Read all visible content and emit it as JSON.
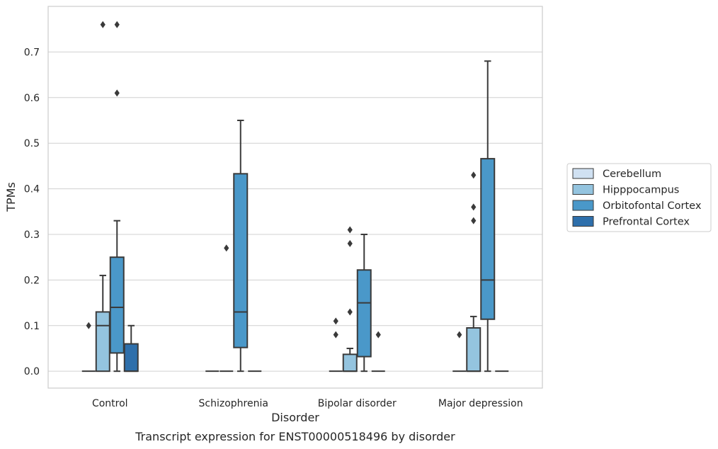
{
  "chart_data": {
    "type": "box",
    "caption": "Transcript expression for ENST00000518496 by disorder",
    "xlabel": "Disorder",
    "ylabel": "TPMs",
    "ylim": [
      -0.037,
      0.8
    ],
    "yticks": [
      0.0,
      0.1,
      0.2,
      0.3,
      0.4,
      0.5,
      0.6,
      0.7
    ],
    "ytick_labels": [
      "0.0",
      "0.1",
      "0.2",
      "0.3",
      "0.4",
      "0.5",
      "0.6",
      "0.7"
    ],
    "grid": "horizontal",
    "legend_position": "right",
    "categories": [
      "Control",
      "Schizophrenia",
      "Bipolar disorder",
      "Major depression"
    ],
    "series": [
      {
        "name": "Cerebellum",
        "color": "#d0e1f2",
        "boxes": [
          {
            "q1": 0.0,
            "median": 0.0,
            "q3": 0.0,
            "whisker_low": 0.0,
            "whisker_high": 0.0,
            "outliers": [
              0.1
            ]
          },
          {
            "q1": 0.0,
            "median": 0.0,
            "q3": 0.0,
            "whisker_low": 0.0,
            "whisker_high": 0.0,
            "outliers": []
          },
          {
            "q1": 0.0,
            "median": 0.0,
            "q3": 0.0,
            "whisker_low": 0.0,
            "whisker_high": 0.0,
            "outliers": [
              0.08,
              0.11
            ]
          },
          {
            "q1": 0.0,
            "median": 0.0,
            "q3": 0.0,
            "whisker_low": 0.0,
            "whisker_high": 0.0,
            "outliers": [
              0.08
            ]
          }
        ]
      },
      {
        "name": "Hipppocampus",
        "color": "#94c4df",
        "boxes": [
          {
            "q1": 0.0,
            "median": 0.1,
            "q3": 0.13,
            "whisker_low": 0.0,
            "whisker_high": 0.21,
            "outliers": [
              0.76
            ]
          },
          {
            "q1": 0.0,
            "median": 0.0,
            "q3": 0.0,
            "whisker_low": 0.0,
            "whisker_high": 0.0,
            "outliers": [
              0.27
            ]
          },
          {
            "q1": 0.0,
            "median": 0.0,
            "q3": 0.037,
            "whisker_low": 0.0,
            "whisker_high": 0.05,
            "outliers": [
              0.13,
              0.28,
              0.31
            ]
          },
          {
            "q1": 0.0,
            "median": 0.0,
            "q3": 0.095,
            "whisker_low": 0.0,
            "whisker_high": 0.12,
            "outliers": [
              0.33,
              0.36,
              0.43
            ]
          }
        ]
      },
      {
        "name": "Orbitofontal Cortex",
        "color": "#4a98c9",
        "boxes": [
          {
            "q1": 0.04,
            "median": 0.14,
            "q3": 0.25,
            "whisker_low": 0.0,
            "whisker_high": 0.33,
            "outliers": [
              0.61,
              0.76
            ]
          },
          {
            "q1": 0.052,
            "median": 0.13,
            "q3": 0.433,
            "whisker_low": 0.0,
            "whisker_high": 0.55,
            "outliers": []
          },
          {
            "q1": 0.032,
            "median": 0.15,
            "q3": 0.222,
            "whisker_low": 0.0,
            "whisker_high": 0.3,
            "outliers": []
          },
          {
            "q1": 0.114,
            "median": 0.2,
            "q3": 0.466,
            "whisker_low": 0.0,
            "whisker_high": 0.68,
            "outliers": []
          }
        ]
      },
      {
        "name": "Prefrontal Cortex",
        "color": "#2e6fab",
        "boxes": [
          {
            "q1": 0.0,
            "median": 0.0,
            "q3": 0.06,
            "whisker_low": 0.0,
            "whisker_high": 0.1,
            "outliers": []
          },
          {
            "q1": 0.0,
            "median": 0.0,
            "q3": 0.0,
            "whisker_low": 0.0,
            "whisker_high": 0.0,
            "outliers": []
          },
          {
            "q1": 0.0,
            "median": 0.0,
            "q3": 0.0,
            "whisker_low": 0.0,
            "whisker_high": 0.0,
            "outliers": [
              0.08
            ]
          },
          {
            "q1": 0.0,
            "median": 0.0,
            "q3": 0.0,
            "whisker_low": 0.0,
            "whisker_high": 0.0,
            "outliers": []
          }
        ]
      }
    ]
  }
}
